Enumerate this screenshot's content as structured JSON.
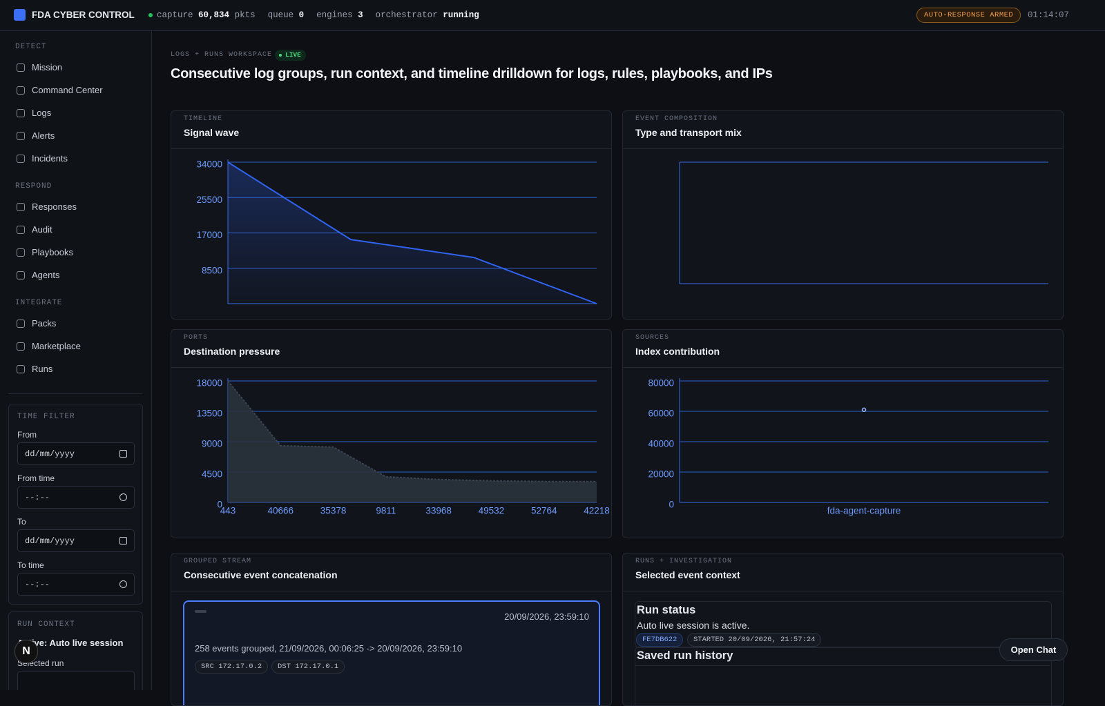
{
  "topbar": {
    "brand": "FDA CYBER CONTROL",
    "stats": [
      {
        "label": "capture",
        "value": "60,834",
        "unit": "pkts"
      },
      {
        "label": "queue",
        "value": "0"
      },
      {
        "label": "engines",
        "value": "3"
      },
      {
        "label": "orchestrator",
        "value": "running"
      }
    ],
    "badge": "AUTO-RESPONSE ARMED",
    "clock": "01:14:07"
  },
  "sidebar": {
    "sections": [
      {
        "title": "DETECT",
        "items": [
          "Mission",
          "Command Center",
          "Logs",
          "Alerts",
          "Incidents"
        ]
      },
      {
        "title": "RESPOND",
        "items": [
          "Responses",
          "Audit",
          "Playbooks",
          "Agents"
        ]
      },
      {
        "title": "INTEGRATE",
        "items": [
          "Packs",
          "Marketplace",
          "Runs"
        ]
      }
    ],
    "time_filter": {
      "title": "TIME FILTER",
      "fields": [
        {
          "label": "From",
          "placeholder": "dd/mm/yyyy"
        },
        {
          "label": "From time",
          "placeholder": "--:--"
        },
        {
          "label": "To",
          "placeholder": "dd/mm/yyyy"
        },
        {
          "label": "To time",
          "placeholder": "--:--"
        }
      ]
    },
    "run_context": {
      "title": "RUN CONTEXT",
      "active": "Active: Auto live session",
      "selected_label": "Selected run"
    }
  },
  "workspace": {
    "eyebrow": "LOGS + RUNS WORKSPACE",
    "live": "LIVE",
    "heading": "Consecutive log groups, run context, and timeline drilldown for logs, rules, playbooks, and IPs"
  },
  "chart_data": [
    {
      "eyebrow": "TIMELINE",
      "title": "Signal wave",
      "type": "line",
      "categories": [
        null,
        null,
        null,
        null
      ],
      "values": [
        34000,
        15400,
        11100,
        0
      ],
      "color": "#2f63f0",
      "ylim": [
        0,
        34000
      ],
      "yticks": [
        8500,
        17000,
        25500,
        34000
      ],
      "grid": true
    },
    {
      "eyebrow": "EVENT COMPOSITION",
      "title": "Type and transport mix",
      "type": "bar"
    },
    {
      "eyebrow": "PORTS",
      "title": "Destination pressure",
      "type": "area",
      "categories": [
        "443",
        "40666",
        "35378",
        "9811",
        "33968",
        "49532",
        "52764",
        "42218"
      ],
      "values": [
        18000,
        8400,
        8200,
        3800,
        3400,
        3200,
        3100,
        3100
      ],
      "color": "#2a323d",
      "ylim": [
        0,
        18000
      ],
      "yticks": [
        0,
        4500,
        9000,
        13500,
        18000
      ],
      "grid": true
    },
    {
      "eyebrow": "SOURCES",
      "title": "Index contribution",
      "type": "scatter",
      "categories": [
        "fda-agent-capture"
      ],
      "values": [
        61000
      ],
      "color": "#9bb8ff",
      "ylim": [
        0,
        80000
      ],
      "yticks": [
        0,
        20000,
        40000,
        60000,
        80000
      ],
      "grid": true
    }
  ],
  "stream": {
    "eyebrow": "GROUPED STREAM",
    "title": "Consecutive event concatenation",
    "cards": [
      {
        "time": "20/09/2026, 23:59:10",
        "summary": "258 events grouped, 21/09/2026, 00:06:25 -> 20/09/2026, 23:59:10",
        "tags": [
          "SRC 172.17.0.2",
          "DST 172.17.0.1"
        ]
      }
    ]
  },
  "context": {
    "eyebrow": "RUNS + INVESTIGATION",
    "title": "Selected event context",
    "status_title": "Run status",
    "status_text": "Auto live session is active.",
    "tags": [
      "FE7DB622",
      "STARTED 20/09/2026, 21:57:24"
    ],
    "history_title": "Saved run history"
  },
  "chat_button": "Open Chat"
}
